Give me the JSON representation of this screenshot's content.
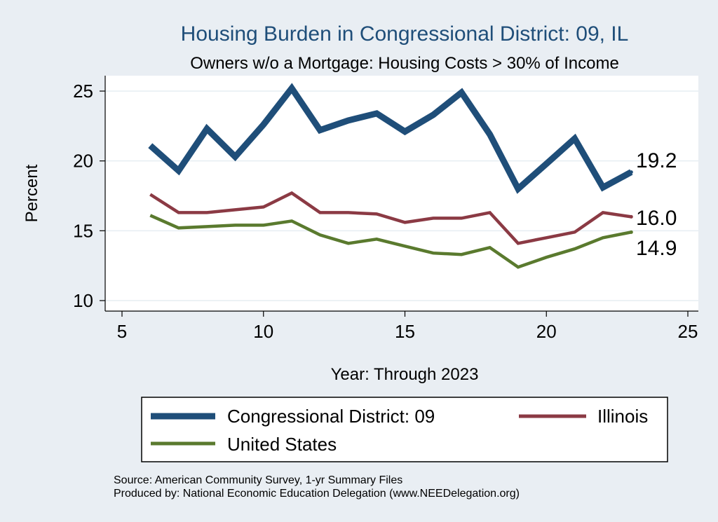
{
  "chart_data": {
    "type": "line",
    "title": "Housing Burden in Congressional District:  09, IL",
    "subtitle": "Owners w/o a Mortgage: Housing Costs > 30% of Income",
    "xlabel": "Year: Through 2023",
    "ylabel": "Percent",
    "xlim": [
      5,
      25
    ],
    "ylim": [
      10,
      25
    ],
    "xticks": [
      "5",
      "10",
      "15",
      "20",
      "25"
    ],
    "yticks": [
      "10",
      "15",
      "20",
      "25"
    ],
    "grid": true,
    "x": [
      6,
      7,
      8,
      9,
      10,
      11,
      12,
      13,
      14,
      15,
      16,
      17,
      18,
      19,
      20,
      21,
      22,
      23
    ],
    "series": [
      {
        "name": "Congressional District:  09",
        "color": "#1f4e79",
        "values": [
          21.1,
          19.3,
          22.3,
          20.3,
          22.6,
          25.2,
          22.2,
          22.9,
          23.4,
          22.1,
          23.3,
          24.9,
          21.9,
          18.0,
          19.8,
          21.6,
          18.1,
          19.2
        ],
        "end_label": "19.2"
      },
      {
        "name": "Illinois",
        "color": "#8b3a44",
        "values": [
          17.6,
          16.3,
          16.3,
          16.5,
          16.7,
          17.7,
          16.3,
          16.3,
          16.2,
          15.6,
          15.9,
          15.9,
          16.3,
          14.1,
          14.5,
          14.9,
          16.3,
          16.0
        ],
        "end_label": "16.0"
      },
      {
        "name": "United States",
        "color": "#5a7a2e",
        "values": [
          16.1,
          15.2,
          15.3,
          15.4,
          15.4,
          15.7,
          14.7,
          14.1,
          14.4,
          13.9,
          13.4,
          13.3,
          13.8,
          12.4,
          13.1,
          13.7,
          14.5,
          14.9
        ],
        "end_label": "14.9"
      }
    ],
    "legend": [
      "Congressional District:  09",
      "Illinois",
      "United States"
    ],
    "source": "Source: American Community Survey, 1-yr Summary Files",
    "produced_by": "Produced by: National Economic Education Delegation (www.NEEDelegation.org)"
  }
}
